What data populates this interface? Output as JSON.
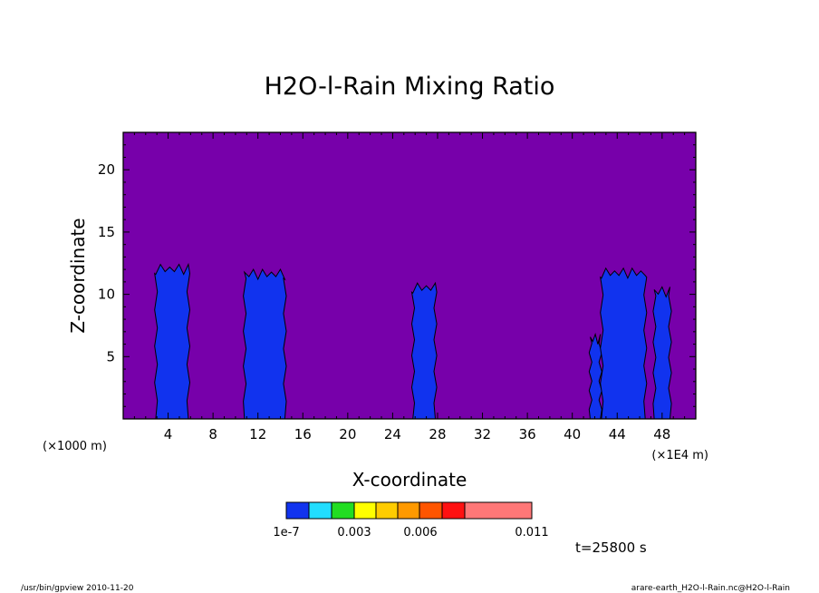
{
  "chart_data": {
    "type": "heatmap",
    "title": "H2O-l-Rain Mixing Ratio",
    "xlabel": "X-coordinate",
    "ylabel": "Z-coordinate",
    "x_unit_left": "(×1000 m)",
    "x_unit_right": "(×1E4 m)",
    "xlim": [
      0,
      51
    ],
    "ylim": [
      0,
      23
    ],
    "xticks": [
      4,
      8,
      12,
      16,
      20,
      24,
      28,
      32,
      36,
      40,
      44,
      48
    ],
    "yticks": [
      5,
      10,
      15,
      20
    ],
    "background_color": "#7700aa",
    "colorbar": {
      "colors": [
        "#1133ee",
        "#22ddff",
        "#22dd22",
        "#ffff00",
        "#ffcc00",
        "#ff9900",
        "#ff5500",
        "#ff1111",
        "#ff7777"
      ],
      "bounds": [
        1e-07,
        0.0015,
        0.003,
        0.0045,
        0.006,
        0.0075,
        0.009,
        0.011
      ],
      "tick_labels": [
        "1e-7",
        "0.003",
        "0.006",
        "0.011"
      ]
    },
    "cells": [
      {
        "x_min": 2.9,
        "x_max": 5.8,
        "z_top": 12.4,
        "color": "#1133ee"
      },
      {
        "x_min": 10.8,
        "x_max": 14.4,
        "z_top": 12.0,
        "color": "#1133ee"
      },
      {
        "x_min": 25.8,
        "x_max": 27.8,
        "z_top": 10.9,
        "color": "#1133ee"
      },
      {
        "x_min": 41.6,
        "x_max": 42.5,
        "z_top": 6.8,
        "color": "#1133ee"
      },
      {
        "x_min": 42.6,
        "x_max": 46.5,
        "z_top": 12.1,
        "color": "#1133ee"
      },
      {
        "x_min": 47.3,
        "x_max": 48.7,
        "z_top": 10.6,
        "color": "#1133ee"
      }
    ],
    "time_label": "t=25800 s"
  },
  "footer": {
    "left": "/usr/bin/gpview  2010-11-20",
    "right": "arare-earth_H2O-l-Rain.nc@H2O-l-Rain"
  }
}
